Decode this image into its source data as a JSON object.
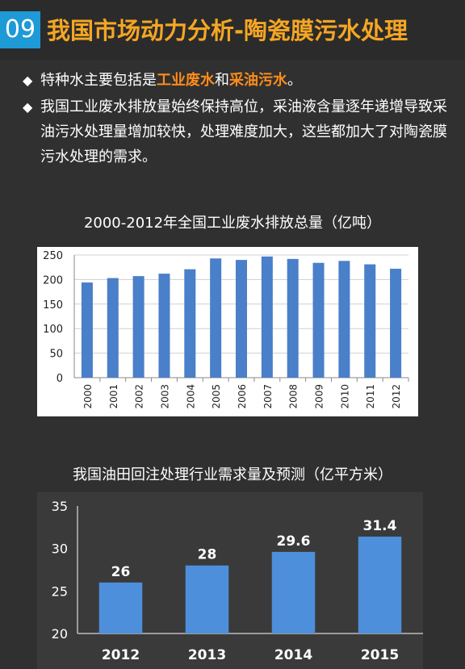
{
  "header": {
    "number": "09",
    "title": "我国市场动力分析-陶瓷膜污水处理"
  },
  "bullets": [
    {
      "pre": "特种水主要包括是",
      "hl1": "工业废水",
      "mid": "和",
      "hl2": "采油污水",
      "post": "。"
    },
    {
      "text": "我国工业废水排放量始终保持高位，采油液含量逐年递增导致采油污水处理量增加较快，处理难度加大，这些都加大了对陶瓷膜污水处理的需求。"
    }
  ],
  "colors": {
    "accent_orange": "#f5a623",
    "highlight": "#ff8c1a",
    "badge_blue": "#1e9ad6",
    "bar_blue": "#4a7fc9"
  },
  "chart_data": [
    {
      "type": "bar",
      "title": "2000-2012年全国工业废水排放总量（亿吨）",
      "categories": [
        "2000",
        "2001",
        "2002",
        "2003",
        "2004",
        "2005",
        "2006",
        "2007",
        "2008",
        "2009",
        "2010",
        "2011",
        "2012"
      ],
      "values": [
        194,
        203,
        207,
        212,
        221,
        243,
        240,
        247,
        242,
        234,
        238,
        231,
        222
      ],
      "ylim": [
        0,
        250
      ],
      "yticks": [
        0,
        50,
        100,
        150,
        200,
        250
      ],
      "grid": true
    },
    {
      "type": "bar",
      "title": "我国油田回注处理行业需求量及预测（亿平方米）",
      "categories": [
        "2012",
        "2013",
        "2014",
        "2015"
      ],
      "values": [
        26,
        28,
        29.6,
        31.4
      ],
      "data_labels": [
        "26",
        "28",
        "29.6",
        "31.4"
      ],
      "ylim": [
        20,
        35
      ],
      "yticks": [
        20,
        25,
        30,
        35
      ],
      "grid": false
    }
  ]
}
